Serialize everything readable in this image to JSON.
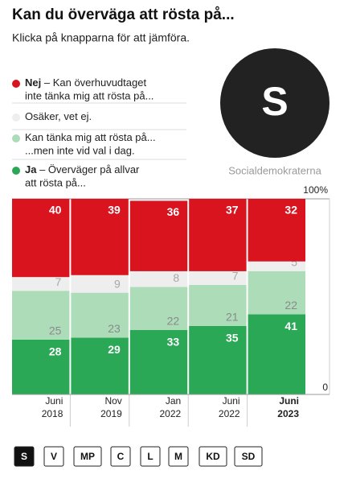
{
  "header": {
    "title": "Kan du överväga att rösta på...",
    "subtitle": "Klicka på knapparna för att jämföra."
  },
  "party": {
    "letter": "S",
    "name": "Socialdemokraterna"
  },
  "chart_data": {
    "type": "stacked-bar",
    "categories": [
      "Juni 2018",
      "Nov 2019",
      "Jan 2022",
      "Juni 2022",
      "Juni 2023"
    ],
    "highlight_category": 4,
    "ylim": [
      0,
      100
    ],
    "yticks": [
      0,
      {
        "value": 100,
        "label": "100%"
      }
    ],
    "series": [
      {
        "name": "Ja",
        "bold": true,
        "description": [
          "– Överväger på allvar",
          "att rösta på..."
        ],
        "color": "#2aa855",
        "label_color": "#ffffff",
        "values": [
          28,
          29,
          33,
          35,
          41
        ]
      },
      {
        "name": "Kan tänka mig att rösta på...",
        "bold": false,
        "description": [
          "...men inte vid val i dag."
        ],
        "color": "#acdcb8",
        "label_color": "#8a8a8a",
        "values": [
          25,
          23,
          22,
          21,
          22
        ]
      },
      {
        "name": "Osäker, vet ej.",
        "bold": false,
        "description": [],
        "color": "#eeeeee",
        "label_color": "#a8a8a8",
        "values": [
          7,
          9,
          8,
          7,
          5
        ]
      },
      {
        "name": "Nej",
        "bold": true,
        "description": [
          "– Kan överhuvudtaget",
          "inte tänka mig att rösta på..."
        ],
        "color": "#d9141e",
        "label_color": "#ffffff",
        "values": [
          40,
          39,
          36,
          37,
          32
        ]
      }
    ]
  },
  "buttons": {
    "items": [
      "S",
      "V",
      "MP",
      "C",
      "L",
      "M",
      "KD",
      "SD"
    ],
    "selected": 0
  }
}
